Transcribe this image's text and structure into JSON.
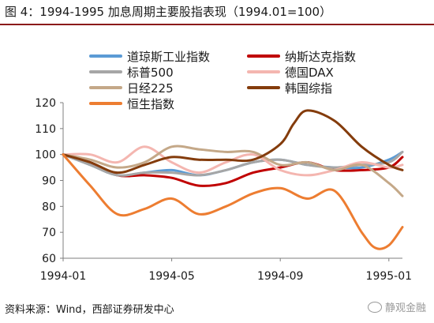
{
  "title": "图 4：1994-1995 加息周期主要股指表现（1994.01=100）",
  "source": "资料来源：Wind，西部证券研发中心",
  "watermark": "静观金融",
  "chart_data": {
    "type": "line",
    "title": "图 4：1994-1995 加息周期主要股指表现（1994.01=100）",
    "xlabel": "",
    "ylabel": "",
    "ylim": [
      60,
      120
    ],
    "yticks": [
      60,
      70,
      80,
      90,
      100,
      110,
      120
    ],
    "xlim": [
      0,
      12.5
    ],
    "x_ticks": [
      {
        "pos": 0,
        "label": "1994-01"
      },
      {
        "pos": 4,
        "label": "1994-05"
      },
      {
        "pos": 8,
        "label": "1994-09"
      },
      {
        "pos": 12,
        "label": "1995-01"
      }
    ],
    "grid": false,
    "legend_placement": "top-center, 2 columns",
    "series": [
      {
        "name": "道琼斯工业指数",
        "color": "#5b9bd5",
        "x": [
          0,
          1,
          2,
          3,
          4,
          5,
          6,
          7,
          8,
          9,
          10,
          11,
          12,
          12.5
        ],
        "y": [
          100,
          96,
          92,
          93,
          94,
          92,
          94,
          97,
          98,
          96,
          95,
          95,
          98,
          101
        ]
      },
      {
        "name": "纳斯达克指数",
        "color": "#c00000",
        "x": [
          0,
          1,
          2,
          3,
          4,
          5,
          6,
          7,
          8,
          9,
          10,
          11,
          12,
          12.5
        ],
        "y": [
          100,
          97,
          92,
          92,
          91,
          88,
          89,
          93,
          95,
          97,
          94,
          94,
          95,
          99
        ]
      },
      {
        "name": "标普500",
        "color": "#a6a6a6",
        "x": [
          0,
          1,
          2,
          3,
          4,
          5,
          6,
          7,
          8,
          9,
          10,
          11,
          12,
          12.5
        ],
        "y": [
          100,
          96,
          92,
          93,
          93,
          92,
          94,
          97,
          98,
          96,
          95,
          96,
          97,
          101
        ]
      },
      {
        "name": "德国DAX",
        "color": "#f4b6b0",
        "x": [
          0,
          1,
          2,
          3,
          4,
          5,
          6,
          7,
          8,
          9,
          10,
          11,
          12,
          12.5
        ],
        "y": [
          100,
          100,
          97,
          103,
          97,
          93,
          97,
          100,
          94,
          92,
          94,
          97,
          95,
          96
        ]
      },
      {
        "name": "日经225",
        "color": "#c4a888",
        "x": [
          0,
          1,
          2,
          3,
          4,
          5,
          6,
          7,
          8,
          9,
          10,
          11,
          12,
          12.5
        ],
        "y": [
          100,
          98,
          95,
          97,
          103,
          102,
          101,
          101,
          96,
          97,
          94,
          96,
          89,
          84
        ]
      },
      {
        "name": "韩国综指",
        "color": "#843c0c",
        "x": [
          0,
          1,
          2,
          3,
          4,
          5,
          6,
          7,
          8,
          8.5,
          9,
          10,
          11,
          12,
          12.5
        ],
        "y": [
          100,
          97,
          93,
          96,
          99,
          98,
          98,
          98,
          104,
          112,
          117,
          113,
          103,
          96,
          94
        ]
      },
      {
        "name": "恒生指数",
        "color": "#ed7d31",
        "x": [
          0,
          1,
          2,
          3,
          4,
          5,
          6,
          7,
          8,
          9,
          10,
          11,
          11.5,
          12,
          12.5
        ],
        "y": [
          100,
          88,
          77,
          79,
          83,
          77,
          80,
          85,
          87,
          83,
          86,
          70,
          64,
          65,
          72
        ]
      }
    ]
  }
}
